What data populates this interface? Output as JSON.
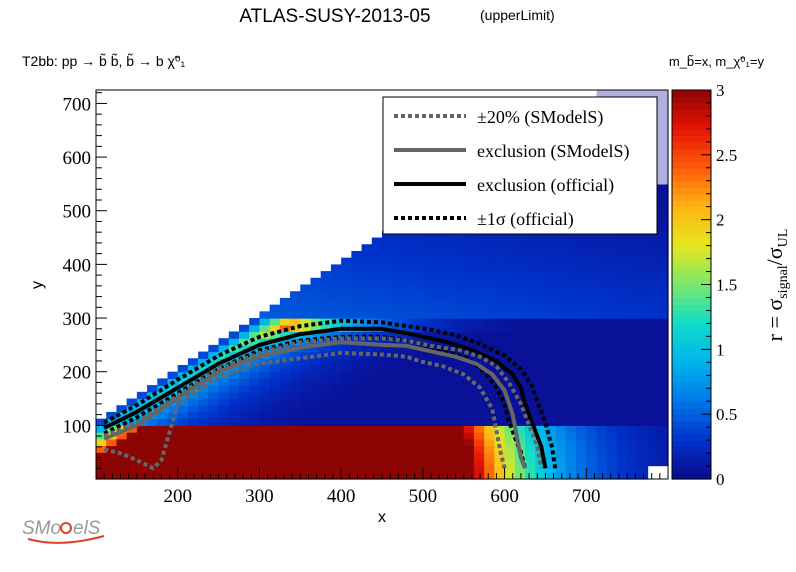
{
  "chart_data": {
    "type": "heatmap",
    "title": "ATLAS-SUSY-2013-05",
    "title_suffix": "(upperLimit)",
    "process_label": "T2bb: pp → b̃ b̃, b̃ → b χ̃⁰₁",
    "mass_assignment": "m_b̃=x, m_χ̃⁰₁=y",
    "xlabel": "x",
    "ylabel": "y",
    "zlabel": "r = σ_signal/σ_UL",
    "xlim": [
      100,
      800
    ],
    "ylim": [
      0,
      725
    ],
    "zlim": [
      0,
      3
    ],
    "xticks": [
      200,
      300,
      400,
      500,
      600,
      700
    ],
    "yticks": [
      100,
      200,
      300,
      400,
      500,
      600,
      700
    ],
    "zticks": [
      0,
      0.5,
      1,
      1.5,
      2,
      2.5,
      3
    ],
    "grid": false,
    "colorscale": [
      "#0a0a8c",
      "#0033cc",
      "#0077e8",
      "#00b4ee",
      "#10dcc8",
      "#7ce86a",
      "#e6e61e",
      "#ffb414",
      "#ff5a0a",
      "#e61405",
      "#8c0404"
    ],
    "saturation_color": "#8c0404",
    "exclusion_color": "#b0b0e0",
    "legend_position": "top-right",
    "legend": [
      {
        "label": "±20% (SModelS)",
        "style": "dotted",
        "color": "#666666"
      },
      {
        "label": "exclusion (SModelS)",
        "style": "solid",
        "color": "#666666"
      },
      {
        "label": "exclusion (official)",
        "style": "solid",
        "color": "#000000"
      },
      {
        "label": "±1σ (official)",
        "style": "dotted",
        "color": "#000000"
      }
    ],
    "series": [
      {
        "name": "exclusion (official)",
        "points": [
          [
            110,
            95
          ],
          [
            150,
            125
          ],
          [
            200,
            170
          ],
          [
            250,
            215
          ],
          [
            300,
            250
          ],
          [
            350,
            270
          ],
          [
            400,
            280
          ],
          [
            450,
            280
          ],
          [
            480,
            272
          ],
          [
            500,
            265
          ],
          [
            530,
            255
          ],
          [
            560,
            240
          ],
          [
            590,
            220
          ],
          [
            610,
            195
          ],
          [
            620,
            170
          ],
          [
            625,
            140
          ],
          [
            635,
            100
          ],
          [
            645,
            60
          ],
          [
            650,
            20
          ]
        ]
      },
      {
        "name": "+1σ (official)",
        "points": [
          [
            110,
            105
          ],
          [
            150,
            138
          ],
          [
            200,
            185
          ],
          [
            250,
            230
          ],
          [
            300,
            265
          ],
          [
            350,
            285
          ],
          [
            400,
            295
          ],
          [
            450,
            292
          ],
          [
            480,
            285
          ],
          [
            510,
            278
          ],
          [
            540,
            268
          ],
          [
            570,
            252
          ],
          [
            600,
            230
          ],
          [
            620,
            205
          ],
          [
            633,
            175
          ],
          [
            640,
            145
          ],
          [
            650,
            105
          ],
          [
            658,
            60
          ],
          [
            662,
            20
          ]
        ]
      },
      {
        "name": "-1σ (official)",
        "points": [
          [
            110,
            85
          ],
          [
            150,
            115
          ],
          [
            200,
            160
          ],
          [
            250,
            205
          ],
          [
            300,
            240
          ],
          [
            350,
            258
          ],
          [
            400,
            265
          ],
          [
            450,
            265
          ],
          [
            480,
            258
          ],
          [
            500,
            250
          ],
          [
            530,
            238
          ],
          [
            555,
            225
          ],
          [
            575,
            200
          ],
          [
            590,
            170
          ],
          [
            600,
            140
          ],
          [
            605,
            110
          ],
          [
            612,
            80
          ],
          [
            620,
            50
          ],
          [
            625,
            20
          ]
        ]
      },
      {
        "name": "exclusion (SModelS)",
        "points": [
          [
            110,
            75
          ],
          [
            150,
            100
          ],
          [
            200,
            150
          ],
          [
            250,
            200
          ],
          [
            300,
            228
          ],
          [
            350,
            245
          ],
          [
            400,
            255
          ],
          [
            450,
            250
          ],
          [
            480,
            248
          ],
          [
            510,
            238
          ],
          [
            540,
            228
          ],
          [
            565,
            215
          ],
          [
            585,
            195
          ],
          [
            600,
            165
          ],
          [
            610,
            120
          ],
          [
            615,
            80
          ],
          [
            620,
            40
          ],
          [
            625,
            20
          ]
        ]
      },
      {
        "name": "+20% (SModelS)",
        "points": [
          [
            110,
            80
          ],
          [
            150,
            105
          ],
          [
            200,
            155
          ],
          [
            250,
            205
          ],
          [
            300,
            235
          ],
          [
            350,
            255
          ],
          [
            400,
            262
          ],
          [
            450,
            262
          ],
          [
            480,
            258
          ],
          [
            510,
            248
          ],
          [
            545,
            240
          ],
          [
            570,
            228
          ],
          [
            590,
            210
          ],
          [
            605,
            180
          ],
          [
            620,
            140
          ],
          [
            630,
            100
          ],
          [
            640,
            60
          ],
          [
            645,
            20
          ]
        ]
      },
      {
        "name": "-20% (SModelS)",
        "points": [
          [
            110,
            55
          ],
          [
            130,
            48
          ],
          [
            150,
            35
          ],
          [
            170,
            20
          ],
          [
            180,
            35
          ],
          [
            200,
            140
          ],
          [
            250,
            190
          ],
          [
            300,
            215
          ],
          [
            350,
            225
          ],
          [
            400,
            235
          ],
          [
            450,
            232
          ],
          [
            480,
            228
          ],
          [
            500,
            218
          ],
          [
            525,
            210
          ],
          [
            550,
            195
          ],
          [
            570,
            170
          ],
          [
            585,
            130
          ],
          [
            590,
            90
          ],
          [
            595,
            50
          ],
          [
            600,
            20
          ]
        ]
      }
    ]
  }
}
